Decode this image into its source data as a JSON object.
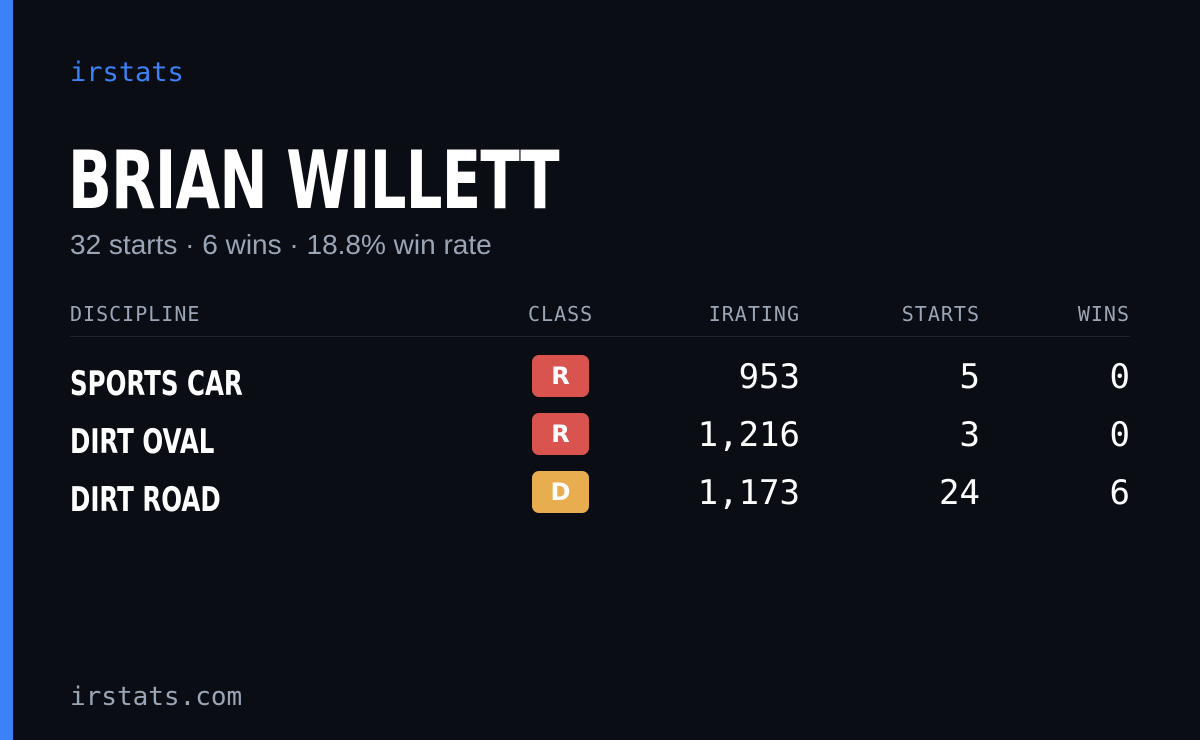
{
  "colors": {
    "accent": "#3b82f6",
    "class_R": "#d9534f",
    "class_D": "#e8ad4e"
  },
  "brand": "irstats",
  "driver": {
    "name": "BRIAN WILLETT",
    "summary": "32 starts · 6 wins · 18.8% win rate"
  },
  "table": {
    "headers": {
      "discipline": "DISCIPLINE",
      "class": "CLASS",
      "irating": "IRATING",
      "starts": "STARTS",
      "wins": "WINS"
    },
    "rows": [
      {
        "discipline": "SPORTS CAR",
        "class": "R",
        "irating": "953",
        "starts": "5",
        "wins": "0"
      },
      {
        "discipline": "DIRT OVAL",
        "class": "R",
        "irating": "1,216",
        "starts": "3",
        "wins": "0"
      },
      {
        "discipline": "DIRT ROAD",
        "class": "D",
        "irating": "1,173",
        "starts": "24",
        "wins": "6"
      }
    ]
  },
  "footer": "irstats.com"
}
